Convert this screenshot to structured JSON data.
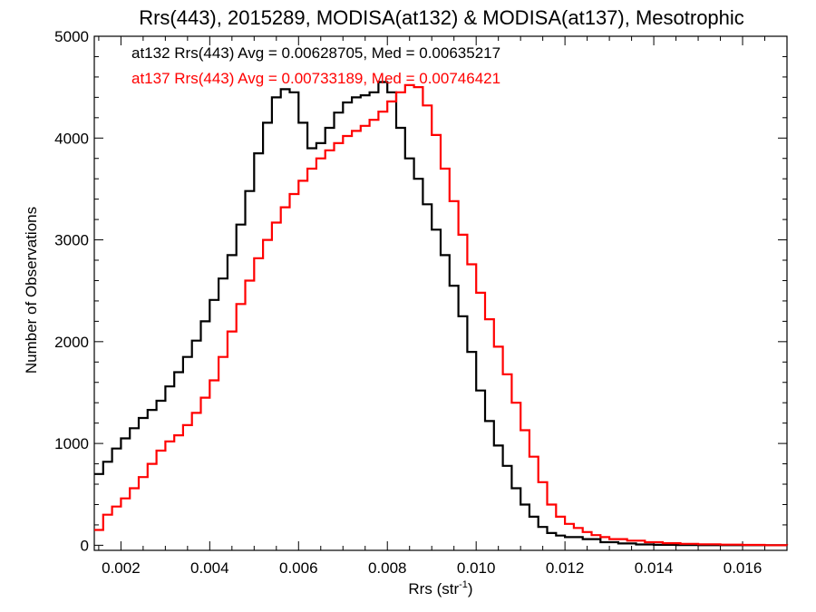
{
  "chart_data": {
    "type": "line",
    "title": "Rrs(443), 2015289, MODISA(at132) & MODISA(at137), Mesotrophic",
    "xlabel_base": "Rrs (str",
    "xlabel_sup": "-1",
    "xlabel_end": ")",
    "ylabel": "Number of Observations",
    "xlim": [
      0.0014,
      0.017
    ],
    "ylim": [
      -50,
      5000
    ],
    "xticks": [
      0.002,
      0.004,
      0.006,
      0.008,
      0.01,
      0.012,
      0.014,
      0.016
    ],
    "xtick_labels": [
      "0.002",
      "0.004",
      "0.006",
      "0.008",
      "0.010",
      "0.012",
      "0.014",
      "0.016"
    ],
    "yticks": [
      0,
      1000,
      2000,
      3000,
      4000,
      5000
    ],
    "ytick_labels": [
      "0",
      "1000",
      "2000",
      "3000",
      "4000",
      "5000"
    ],
    "legend_placement": "top-left",
    "annotations": [
      {
        "text": "at132 Rrs(443) Avg = 0.00628705, Med = 0.00635217",
        "color": "#000000"
      },
      {
        "text": "at137 Rrs(443) Avg = 0.00733189, Med = 0.00746421",
        "color": "#ff0000"
      }
    ],
    "series": [
      {
        "color": "#000000",
        "points": [
          [
            0.0014,
            700
          ],
          [
            0.0016,
            820
          ],
          [
            0.0018,
            950
          ],
          [
            0.002,
            1050
          ],
          [
            0.0022,
            1150
          ],
          [
            0.0024,
            1250
          ],
          [
            0.0026,
            1330
          ],
          [
            0.0028,
            1420
          ],
          [
            0.003,
            1560
          ],
          [
            0.0032,
            1700
          ],
          [
            0.0034,
            1850
          ],
          [
            0.0036,
            2010
          ],
          [
            0.0038,
            2200
          ],
          [
            0.004,
            2410
          ],
          [
            0.0042,
            2620
          ],
          [
            0.0044,
            2850
          ],
          [
            0.0046,
            3150
          ],
          [
            0.0048,
            3480
          ],
          [
            0.005,
            3850
          ],
          [
            0.0052,
            4150
          ],
          [
            0.0054,
            4400
          ],
          [
            0.0056,
            4480
          ],
          [
            0.0058,
            4450
          ],
          [
            0.006,
            4150
          ],
          [
            0.0062,
            3900
          ],
          [
            0.0064,
            3950
          ],
          [
            0.0066,
            4100
          ],
          [
            0.0068,
            4250
          ],
          [
            0.007,
            4350
          ],
          [
            0.0072,
            4400
          ],
          [
            0.0074,
            4420
          ],
          [
            0.0076,
            4450
          ],
          [
            0.0078,
            4550
          ],
          [
            0.008,
            4450
          ],
          [
            0.0082,
            4100
          ],
          [
            0.0084,
            3800
          ],
          [
            0.0086,
            3600
          ],
          [
            0.0088,
            3350
          ],
          [
            0.009,
            3100
          ],
          [
            0.0092,
            2850
          ],
          [
            0.0094,
            2550
          ],
          [
            0.0096,
            2250
          ],
          [
            0.0098,
            1900
          ],
          [
            0.01,
            1520
          ],
          [
            0.0102,
            1220
          ],
          [
            0.0104,
            980
          ],
          [
            0.0106,
            780
          ],
          [
            0.0108,
            560
          ],
          [
            0.011,
            400
          ],
          [
            0.0112,
            280
          ],
          [
            0.0114,
            180
          ],
          [
            0.0116,
            120
          ],
          [
            0.0118,
            95
          ],
          [
            0.012,
            80
          ],
          [
            0.0124,
            60
          ],
          [
            0.0128,
            30
          ],
          [
            0.0132,
            18
          ],
          [
            0.0136,
            8
          ],
          [
            0.014,
            4
          ],
          [
            0.0145,
            2
          ],
          [
            0.015,
            1
          ],
          [
            0.017,
            0
          ]
        ]
      },
      {
        "color": "#ff0000",
        "points": [
          [
            0.0014,
            150
          ],
          [
            0.0016,
            300
          ],
          [
            0.0018,
            380
          ],
          [
            0.002,
            460
          ],
          [
            0.0022,
            560
          ],
          [
            0.0024,
            670
          ],
          [
            0.0026,
            800
          ],
          [
            0.0028,
            930
          ],
          [
            0.003,
            1020
          ],
          [
            0.0032,
            1080
          ],
          [
            0.0034,
            1180
          ],
          [
            0.0036,
            1300
          ],
          [
            0.0038,
            1450
          ],
          [
            0.004,
            1620
          ],
          [
            0.0042,
            1850
          ],
          [
            0.0044,
            2100
          ],
          [
            0.0046,
            2370
          ],
          [
            0.0048,
            2600
          ],
          [
            0.005,
            2820
          ],
          [
            0.0052,
            3000
          ],
          [
            0.0054,
            3170
          ],
          [
            0.0056,
            3320
          ],
          [
            0.0058,
            3450
          ],
          [
            0.006,
            3580
          ],
          [
            0.0062,
            3700
          ],
          [
            0.0064,
            3800
          ],
          [
            0.0066,
            3880
          ],
          [
            0.0068,
            3950
          ],
          [
            0.007,
            4020
          ],
          [
            0.0072,
            4070
          ],
          [
            0.0074,
            4120
          ],
          [
            0.0076,
            4180
          ],
          [
            0.0078,
            4260
          ],
          [
            0.008,
            4360
          ],
          [
            0.0082,
            4450
          ],
          [
            0.0084,
            4520
          ],
          [
            0.0086,
            4500
          ],
          [
            0.0088,
            4320
          ],
          [
            0.009,
            4030
          ],
          [
            0.0092,
            3700
          ],
          [
            0.0094,
            3380
          ],
          [
            0.0096,
            3050
          ],
          [
            0.0098,
            2760
          ],
          [
            0.01,
            2480
          ],
          [
            0.0102,
            2220
          ],
          [
            0.0104,
            1950
          ],
          [
            0.0106,
            1680
          ],
          [
            0.0108,
            1400
          ],
          [
            0.011,
            1130
          ],
          [
            0.0112,
            870
          ],
          [
            0.0114,
            620
          ],
          [
            0.0116,
            400
          ],
          [
            0.0118,
            280
          ],
          [
            0.012,
            210
          ],
          [
            0.0122,
            170
          ],
          [
            0.0124,
            130
          ],
          [
            0.0126,
            100
          ],
          [
            0.0128,
            80
          ],
          [
            0.013,
            60
          ],
          [
            0.0134,
            45
          ],
          [
            0.0138,
            30
          ],
          [
            0.0142,
            20
          ],
          [
            0.0146,
            14
          ],
          [
            0.015,
            10
          ],
          [
            0.0155,
            6
          ],
          [
            0.016,
            3
          ],
          [
            0.0165,
            1
          ],
          [
            0.017,
            0
          ]
        ]
      }
    ]
  }
}
